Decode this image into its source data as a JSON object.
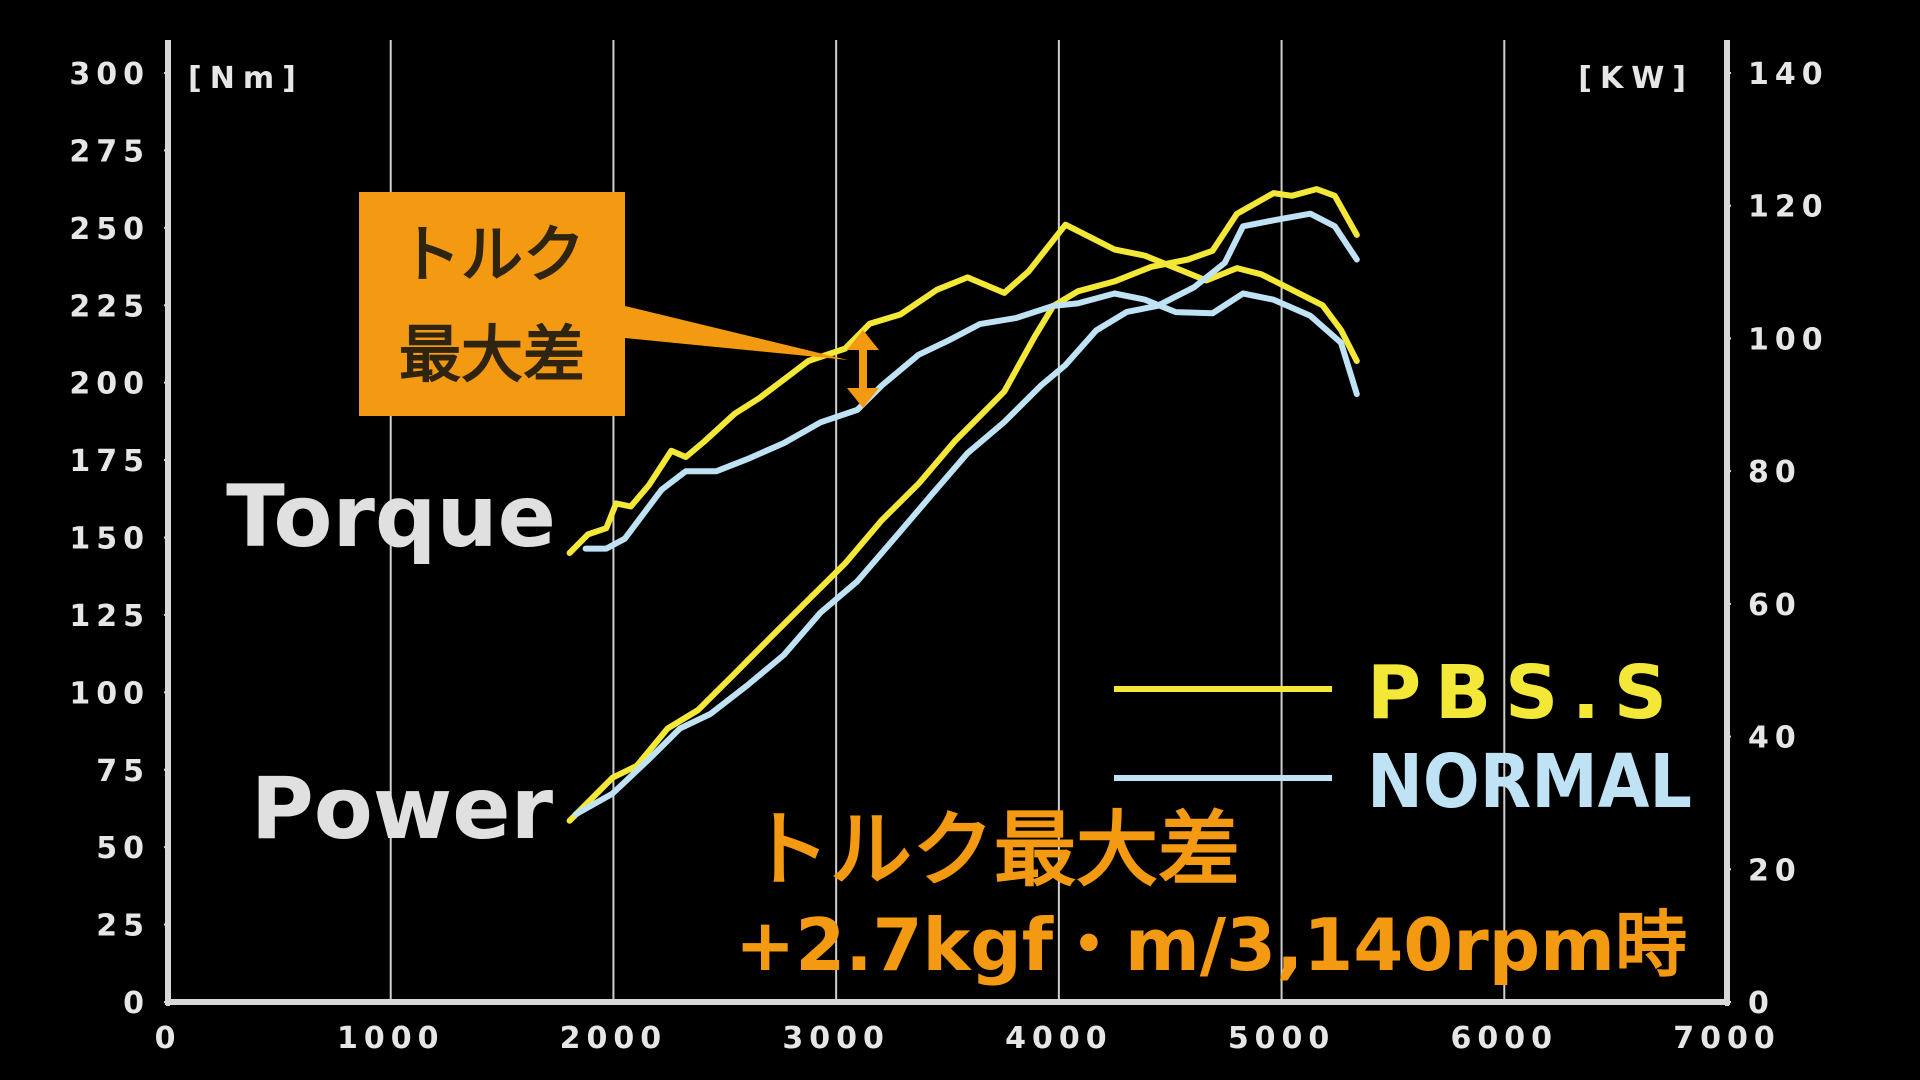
{
  "chart_data": {
    "type": "line",
    "y_unit": "[Nm]",
    "y2_unit": "[KW]",
    "xlim": [
      0,
      7000
    ],
    "xticks": [
      0,
      1000,
      2000,
      3000,
      4000,
      5000,
      6000,
      7000
    ],
    "ylim": [
      0,
      300
    ],
    "yticks": [
      0,
      25,
      50,
      75,
      100,
      125,
      150,
      175,
      200,
      225,
      250,
      275,
      300
    ],
    "y2lim": [
      0,
      140
    ],
    "y2ticks": [
      0,
      20,
      40,
      60,
      80,
      100,
      120,
      140
    ],
    "grid": true,
    "legend": "lower right",
    "curve_labels": [
      "Torque",
      "Power"
    ],
    "callout": [
      "トルク",
      "最大差"
    ],
    "annotation": [
      "トルク最大差",
      "+2.7kgf・m/3,140rpm時"
    ],
    "series": [
      {
        "name": "PBS.S",
        "color": "#f3e838",
        "curves": [
          {
            "x": [
              1803,
              1886,
              1968,
              2012,
              2078,
              2160,
              2260,
              2325,
              2408,
              2545,
              2655,
              2765,
              2875,
              3040,
              3150,
              3288,
              3452,
              3590,
              3755,
              3865,
              4030,
              4140,
              4250,
              4387,
              4525,
              4662,
              4800,
              4909,
              5074,
              5184,
              5267,
              5338
            ],
            "values": [
              145,
              151,
              153,
              161,
              160,
              167,
              178,
              176,
              181,
              190,
              195,
              201,
              207,
              211,
              219,
              222,
              230,
              234,
              229,
              236,
              251,
              247,
              243,
              241,
              237,
              233,
              237,
              235,
              229,
              225,
              217,
              207
            ]
          },
          {
            "x": [
              1803,
              1996,
              2105,
              2243,
              2380,
              2545,
              2710,
              2875,
              3040,
              3205,
              3370,
              3535,
              3645,
              3755,
              3892,
              3975,
              4085,
              4250,
              4415,
              4580,
              4690,
              4800,
              4964,
              5046,
              5157,
              5239,
              5338
            ],
            "values": [
              27.3,
              33.8,
              35.6,
              41.2,
              44.0,
              49.5,
              55.1,
              60.6,
              66.1,
              72.6,
              78.1,
              84.6,
              88.3,
              92.0,
              100.3,
              104.9,
              107.1,
              108.6,
              110.8,
              111.9,
              113.2,
              118.8,
              121.9,
              121.5,
              122.5,
              121.5,
              115.6
            ],
            "axis": "y2"
          }
        ]
      },
      {
        "name": "NORMAL",
        "color": "#bfe2f5",
        "curves": [
          {
            "x": [
              1875,
              1968,
              2051,
              2216,
              2325,
              2463,
              2600,
              2765,
              2930,
              3095,
              3205,
              3370,
              3507,
              3645,
              3810,
              3975,
              4085,
              4250,
              4387,
              4525,
              4690,
              4827,
              4964,
              5129,
              5267,
              5338
            ],
            "values": [
              146.4,
              146.4,
              149.6,
              165.4,
              171.4,
              171.4,
              175.3,
              180.5,
              187.2,
              191.2,
              199.1,
              209.0,
              213.7,
              218.9,
              220.9,
              224.8,
              225.6,
              228.8,
              226.8,
              222.8,
              222.4,
              228.8,
              226.8,
              221.6,
              212.9,
              196.3
            ]
          },
          {
            "x": [
              1831,
              1996,
              2160,
              2298,
              2435,
              2600,
              2765,
              2930,
              3095,
              3260,
              3425,
              3590,
              3755,
              3920,
              4030,
              4167,
              4305,
              4442,
              4607,
              4745,
              4827,
              4964,
              5129,
              5239,
              5338
            ],
            "values": [
              28.3,
              31.4,
              36.6,
              41.2,
              43.4,
              47.7,
              52.3,
              58.7,
              63.4,
              69.8,
              76.3,
              82.7,
              87.4,
              92.9,
              96.0,
              101.2,
              104.0,
              104.9,
              107.7,
              111.4,
              116.9,
              117.8,
              118.8,
              116.9,
              111.9
            ],
            "axis": "y2"
          }
        ]
      }
    ]
  }
}
